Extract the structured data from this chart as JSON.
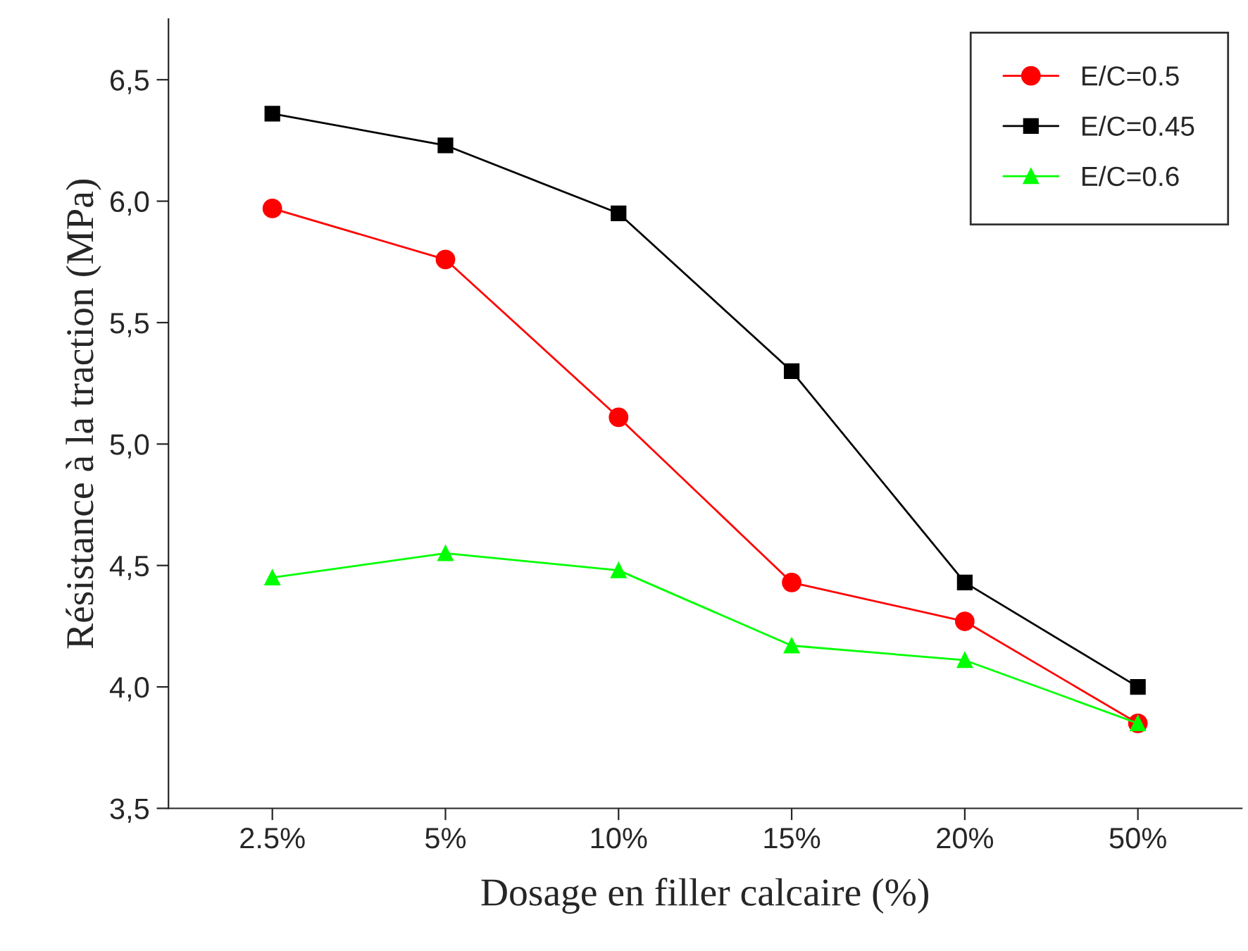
{
  "chart_data": {
    "type": "line",
    "xlabel": "Dosage en filler calcaire (%)",
    "ylabel": "Résistance à la traction (MPa)",
    "categories": [
      "2.5%",
      "5%",
      "10%",
      "15%",
      "20%",
      "50%"
    ],
    "series": [
      {
        "name": "E/C=0.5",
        "color": "#ff0000",
        "marker": "circle",
        "values": [
          5.97,
          5.76,
          5.11,
          4.43,
          4.27,
          3.85
        ]
      },
      {
        "name": "E/C=0.45",
        "color": "#000000",
        "marker": "square",
        "values": [
          6.36,
          6.23,
          5.95,
          5.3,
          4.43,
          4.0
        ]
      },
      {
        "name": "E/C=0.6",
        "color": "#00ff00",
        "marker": "triangle",
        "values": [
          4.45,
          4.55,
          4.48,
          4.17,
          4.11,
          3.85
        ]
      }
    ],
    "ylim": [
      3.5,
      6.75
    ],
    "yticks": [
      {
        "value": 3.5,
        "label": "3,5"
      },
      {
        "value": 4.0,
        "label": "4,0"
      },
      {
        "value": 4.5,
        "label": "4,5"
      },
      {
        "value": 5.0,
        "label": "5,0"
      },
      {
        "value": 5.5,
        "label": "5,5"
      },
      {
        "value": 6.0,
        "label": "6,0"
      },
      {
        "value": 6.5,
        "label": "6,5"
      }
    ],
    "legend": "top right",
    "grid": false,
    "line_style": "solid"
  }
}
